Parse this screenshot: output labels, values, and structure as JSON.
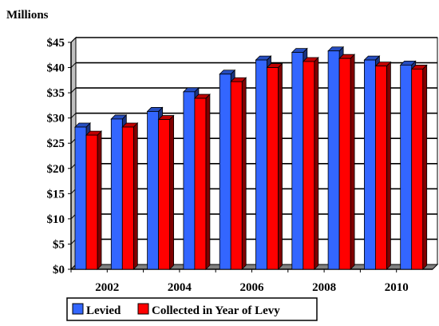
{
  "chart_data": {
    "type": "bar",
    "unit_label": "Millions",
    "categories": [
      "2002",
      "2003",
      "2004",
      "2005",
      "2006",
      "2007",
      "2008",
      "2009",
      "2010",
      "2011"
    ],
    "x_tick_labels": [
      "2002",
      "",
      "2004",
      "",
      "2006",
      "",
      "2008",
      "",
      "2010",
      ""
    ],
    "series": [
      {
        "name": "Levied",
        "color": "#3366ff",
        "values": [
          28.2,
          29.8,
          31.3,
          35.2,
          38.7,
          41.5,
          43.0,
          43.3,
          41.5,
          40.5
        ]
      },
      {
        "name": "Collected in Year of Levy",
        "color": "#ff0000",
        "values": [
          26.6,
          28.2,
          29.7,
          33.9,
          37.2,
          40.0,
          41.2,
          41.8,
          40.3,
          39.7
        ]
      }
    ],
    "y_tick_labels": [
      "$0",
      "$5",
      "$10",
      "$15",
      "$20",
      "$25",
      "$30",
      "$35",
      "$40",
      "$45"
    ],
    "ylim": [
      0,
      45
    ],
    "y_step": 5,
    "grid": true,
    "legend_position": "bottom"
  }
}
